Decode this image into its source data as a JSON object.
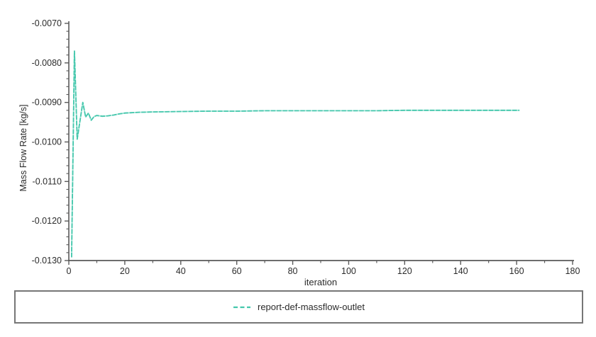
{
  "window": {
    "background": "#ffffff"
  },
  "colors": {
    "series": "#44c7ac",
    "axis": "#5a5a5a",
    "text": "#2b2b2b",
    "legend_border": "#767676"
  },
  "chart_data": {
    "type": "line",
    "title": "",
    "xlabel": "iteration",
    "ylabel": "Mass Flow Rate [kg/s]",
    "xlim": [
      0,
      180
    ],
    "ylim": [
      -0.013,
      -0.007
    ],
    "grid": false,
    "x_major_ticks": [
      0,
      20,
      40,
      60,
      80,
      100,
      120,
      140,
      160,
      180
    ],
    "x_minor_ticks": [
      10,
      30,
      50,
      70,
      90,
      110,
      130,
      150,
      170
    ],
    "y_major_ticks": [
      -0.007,
      -0.008,
      -0.009,
      -0.01,
      -0.011,
      -0.012,
      -0.013
    ],
    "y_tick_labels": [
      "-0.0070",
      "-0.0080",
      "-0.0090",
      "-0.0100",
      "-0.0110",
      "-0.0120",
      "-0.0130"
    ],
    "y_minor_step": 0.0002,
    "legend": {
      "position": "bottom-box",
      "entries": [
        {
          "label": "report-def-massflow-outlet",
          "color": "#44c7ac",
          "line_style": "dashed"
        }
      ]
    },
    "series": [
      {
        "name": "report-def-massflow-outlet",
        "color": "#44c7ac",
        "line_style": "dashed",
        "points": [
          [
            1,
            -0.01292
          ],
          [
            2,
            -0.0077
          ],
          [
            3,
            -0.00993
          ],
          [
            4,
            -0.00946
          ],
          [
            5,
            -0.009
          ],
          [
            6,
            -0.00937
          ],
          [
            7,
            -0.00927
          ],
          [
            8,
            -0.00945
          ],
          [
            9,
            -0.00936
          ],
          [
            10,
            -0.00933
          ],
          [
            12,
            -0.00935
          ],
          [
            14,
            -0.00934
          ],
          [
            16,
            -0.00932
          ],
          [
            18,
            -0.00929
          ],
          [
            20,
            -0.00927
          ],
          [
            25,
            -0.00925
          ],
          [
            30,
            -0.00924
          ],
          [
            40,
            -0.00923
          ],
          [
            50,
            -0.00922
          ],
          [
            60,
            -0.00922
          ],
          [
            70,
            -0.00921
          ],
          [
            80,
            -0.00921
          ],
          [
            90,
            -0.00921
          ],
          [
            100,
            -0.00921
          ],
          [
            110,
            -0.00921
          ],
          [
            120,
            -0.0092
          ],
          [
            130,
            -0.0092
          ],
          [
            140,
            -0.0092
          ],
          [
            150,
            -0.0092
          ],
          [
            161,
            -0.0092
          ]
        ]
      }
    ]
  }
}
